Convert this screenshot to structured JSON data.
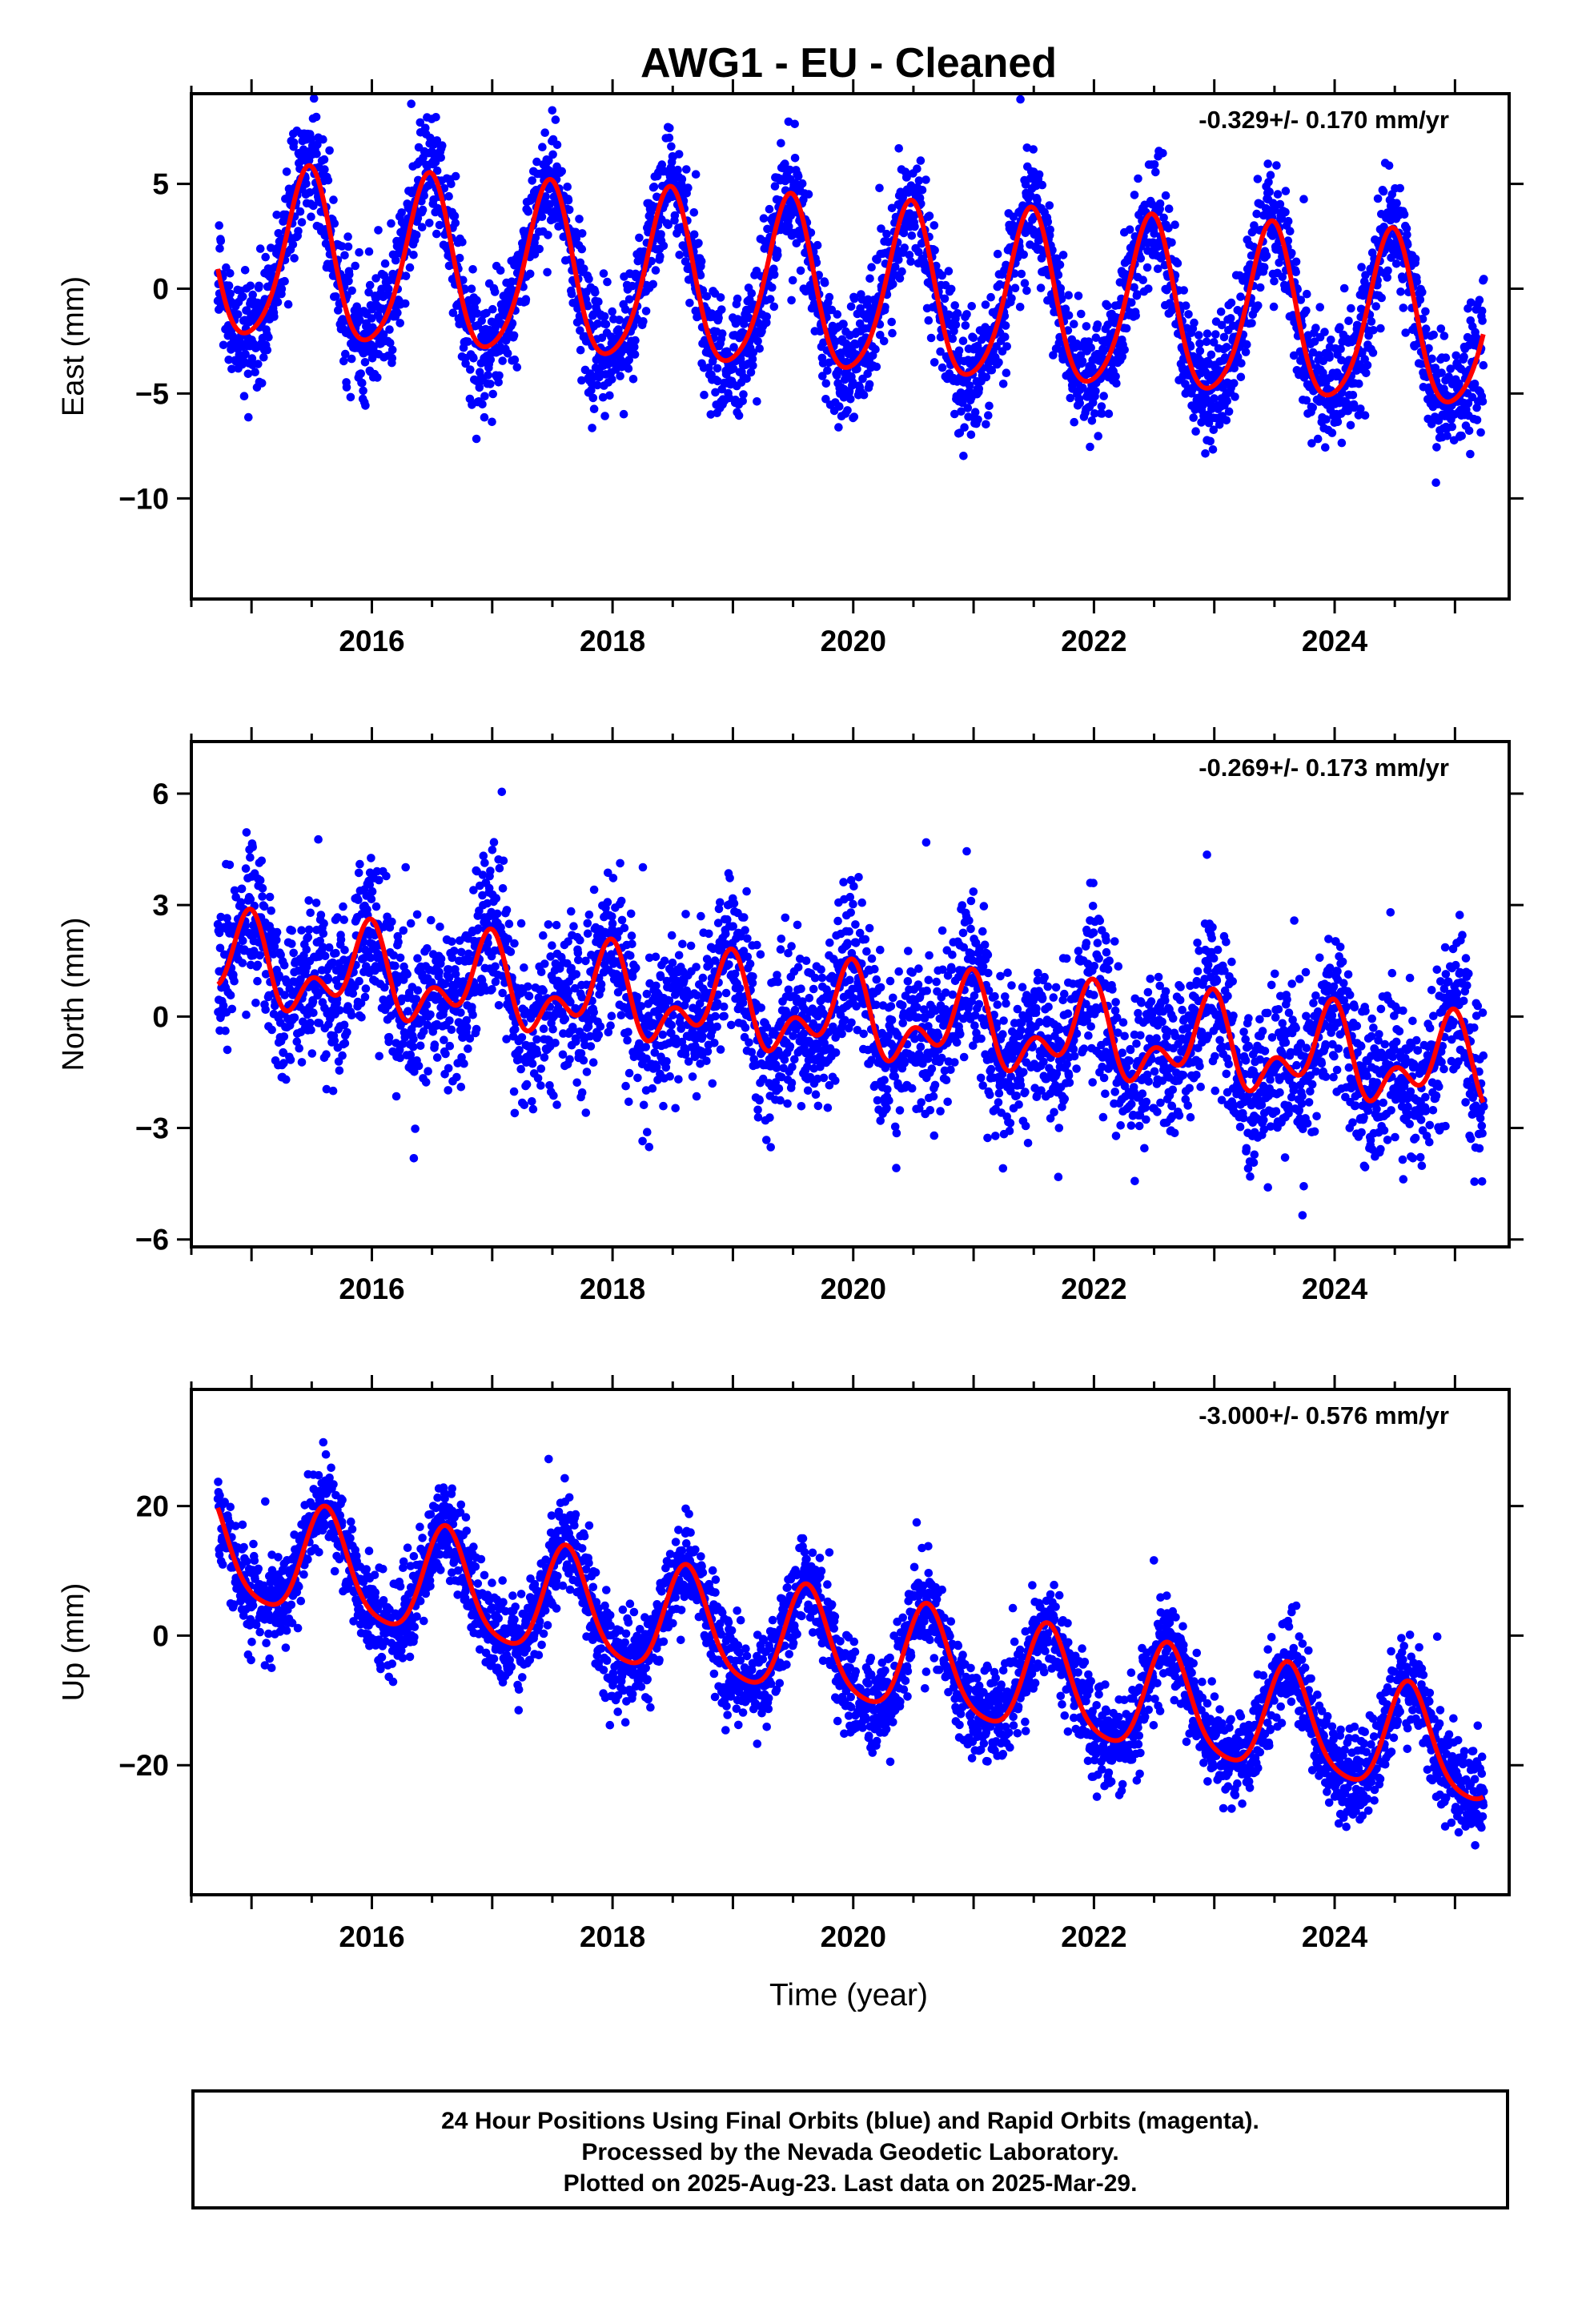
{
  "title": "AWG1  - EU - Cleaned",
  "x_axis_label": "Time (year)",
  "footer": {
    "line1": "24 Hour Positions Using Final Orbits (blue) and Rapid Orbits (magenta).",
    "line2": "Processed by the Nevada Geodetic Laboratory.",
    "line3": "Plotted on 2025-Aug-23. Last data on 2025-Mar-29."
  },
  "colors": {
    "final_orbit_points": "#0000ff",
    "model_fit": "#ff0000",
    "frame": "#000000"
  },
  "chart_data": [
    {
      "type": "scatter",
      "component": "east",
      "ylabel": "East (mm)",
      "rate_label": "-0.329+/- 0.170 mm/yr",
      "xlim": [
        2014.5,
        2025.45
      ],
      "ylim": [
        -14.8,
        9.3
      ],
      "x_ticks": [
        2016,
        2018,
        2020,
        2022,
        2024
      ],
      "y_ticks": [
        5,
        0,
        -5,
        -10
      ],
      "data_start": 2014.72,
      "data_end": 2025.24,
      "fit": {
        "rate_mm_per_yr": -0.329,
        "offset_mm": 1.5,
        "annual_amplitude_mm": 4.05,
        "annual_peak_year_fraction": 0.47,
        "semiannual_amplitude_mm": 0.6,
        "semiannual_peak_year_fraction": 0.0,
        "noise_sd_mm": 1.4
      }
    },
    {
      "type": "scatter",
      "component": "north",
      "ylabel": "North (mm)",
      "rate_label": "-0.269+/- 0.173 mm/yr",
      "xlim": [
        2014.5,
        2025.45
      ],
      "ylim": [
        -6.2,
        7.4
      ],
      "x_ticks": [
        2016,
        2018,
        2020,
        2022,
        2024
      ],
      "y_ticks": [
        6,
        3,
        0,
        -3,
        -6
      ],
      "data_start": 2014.72,
      "data_end": 2025.24,
      "fit": {
        "rate_mm_per_yr": -0.269,
        "offset_mm": 1.4,
        "annual_amplitude_mm": 0.9,
        "annual_peak_year_fraction": 0.95,
        "semiannual_amplitude_mm": 0.7,
        "semiannual_peak_year_fraction": 0.0,
        "noise_sd_mm": 1.05
      }
    },
    {
      "type": "scatter",
      "component": "up",
      "ylabel": "Up (mm)",
      "rate_label": "-3.000+/- 0.576 mm/yr",
      "xlim": [
        2014.5,
        2025.45
      ],
      "ylim": [
        -40,
        38
      ],
      "x_ticks": [
        2016,
        2018,
        2020,
        2022,
        2024
      ],
      "y_ticks": [
        20,
        0,
        -20
      ],
      "data_start": 2014.72,
      "data_end": 2025.24,
      "fit": {
        "rate_mm_per_yr": -3.0,
        "offset_mm": 13.0,
        "annual_amplitude_mm": 8.2,
        "annual_peak_year_fraction": 0.62,
        "semiannual_amplitude_mm": 1.5,
        "semiannual_peak_year_fraction": 0.1,
        "noise_sd_mm": 3.6
      }
    }
  ]
}
